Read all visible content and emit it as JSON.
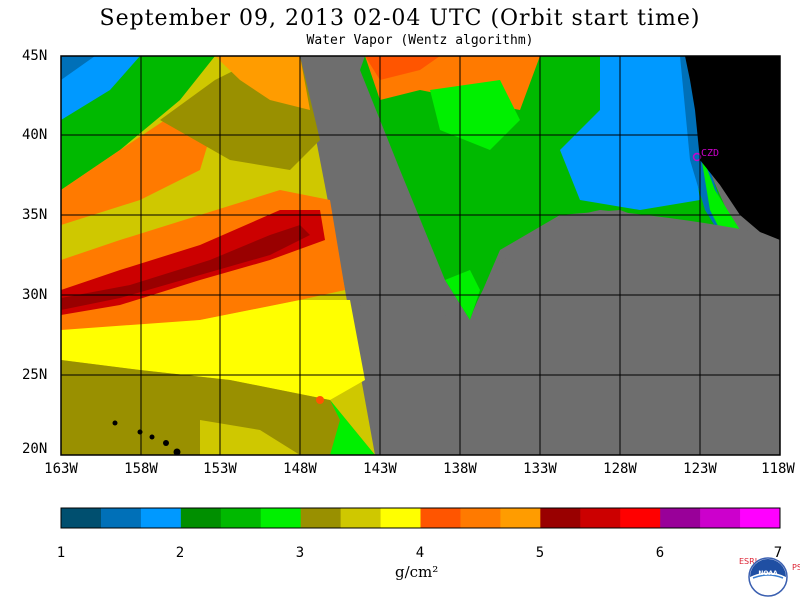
{
  "title": "September 09, 2013  02-04 UTC  (Orbit start time)",
  "subtitle": "Water Vapor (Wentz algorithm)",
  "map": {
    "lat_labels": [
      "45N",
      "40N",
      "35N",
      "30N",
      "25N",
      "20N"
    ],
    "lon_labels": [
      "163W",
      "158W",
      "153W",
      "148W",
      "143W",
      "138W",
      "133W",
      "128W",
      "123W",
      "118W"
    ],
    "annotation": "CZD",
    "colors": {
      "land": "#000000",
      "no_data": "#6e6e6e",
      "grid": "#000000",
      "annotation": "#cc00cc"
    }
  },
  "colorbar": {
    "ticks": [
      "1",
      "2",
      "3",
      "4",
      "5",
      "6",
      "7"
    ],
    "unit": "g/cm²",
    "colors": [
      "#004f6f",
      "#0070b8",
      "#0099ff",
      "#008f00",
      "#00b900",
      "#00f000",
      "#999000",
      "#cfc800",
      "#ffff00",
      "#ff5500",
      "#ff7a00",
      "#ff9c00",
      "#990000",
      "#cc0000",
      "#ff0000",
      "#990099",
      "#cc00cc",
      "#ff00ff"
    ]
  },
  "logo": {
    "left_text": "ESRL",
    "right_text": "PSD",
    "center_text": "NOAA"
  }
}
